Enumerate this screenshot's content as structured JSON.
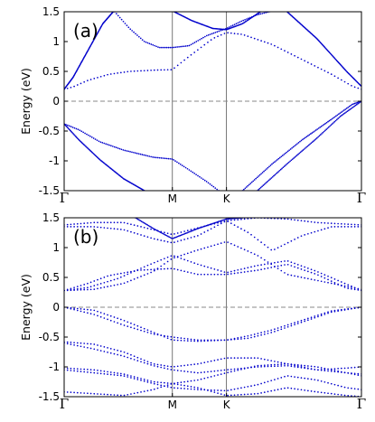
{
  "chart_data": [
    {
      "type": "line",
      "panel_label": "(a)",
      "ylabel": "Energy (eV)",
      "ylim": [
        -1.5,
        1.5
      ],
      "yticks": [
        -1.5,
        -1,
        -0.5,
        0,
        0.5,
        1,
        1.5
      ],
      "ytick_labels": [
        "-1.5",
        "-1",
        "-0.5",
        "0",
        "0.5",
        "1",
        "1.5"
      ],
      "xlim": [
        0,
        1
      ],
      "xticks": [
        {
          "label": "Γ",
          "x": 0.0,
          "sym": true
        },
        {
          "label": "M",
          "x": 0.364,
          "sym": false
        },
        {
          "label": "K",
          "x": 0.546,
          "sym": false
        },
        {
          "label": "Γ",
          "x": 1.0,
          "sym": true
        }
      ],
      "reference_line_y": 0,
      "color": "#0000cc",
      "series": [
        {
          "x": [
            0,
            0.03,
            0.08,
            0.15,
            0.22,
            0.3,
            0.364,
            0.42,
            0.5,
            0.546,
            0.6,
            0.7,
            0.8,
            0.9,
            0.97,
            1.0
          ],
          "y": [
            0.2,
            0.24,
            0.35,
            0.45,
            0.5,
            0.52,
            0.53,
            0.75,
            1.05,
            1.15,
            1.12,
            0.95,
            0.7,
            0.45,
            0.25,
            0.2
          ]
        },
        {
          "x": [
            0.17,
            0.22,
            0.27,
            0.32,
            0.364,
            0.42,
            0.48,
            0.546,
            0.6,
            0.65,
            0.69
          ],
          "y": [
            1.5,
            1.22,
            1.0,
            0.9,
            0.9,
            0.93,
            1.1,
            1.22,
            1.35,
            1.45,
            1.5
          ]
        },
        {
          "x": [
            0,
            0.03,
            0.08,
            0.13,
            0.165
          ],
          "y": [
            0.2,
            0.4,
            0.85,
            1.3,
            1.5
          ]
        },
        {
          "x": [
            0.37,
            0.43,
            0.5,
            0.546,
            0.6,
            0.66
          ],
          "y": [
            1.5,
            1.35,
            1.22,
            1.2,
            1.3,
            1.5
          ]
        },
        {
          "x": [
            0.75,
            0.85,
            0.95,
            1.0
          ],
          "y": [
            1.5,
            1.05,
            0.5,
            0.25
          ]
        },
        {
          "x": [
            0,
            0.05,
            0.12,
            0.2,
            0.3,
            0.364,
            0.42,
            0.48,
            0.52
          ],
          "y": [
            -0.38,
            -0.48,
            -0.68,
            -0.82,
            -0.94,
            -0.97,
            -1.15,
            -1.35,
            -1.5
          ]
        },
        {
          "x": [
            0,
            0.05,
            0.12,
            0.2,
            0.27
          ],
          "y": [
            -0.38,
            -0.65,
            -0.98,
            -1.3,
            -1.5
          ]
        },
        {
          "x": [
            0.6,
            0.7,
            0.8,
            0.9,
            0.97,
            1.0
          ],
          "y": [
            -1.5,
            -1.05,
            -0.65,
            -0.3,
            -0.05,
            0
          ]
        },
        {
          "x": [
            0.65,
            0.75,
            0.85,
            0.93,
            1.0
          ],
          "y": [
            -1.5,
            -1.05,
            -0.62,
            -0.25,
            0
          ]
        }
      ]
    },
    {
      "type": "line",
      "panel_label": "(b)",
      "ylabel": "Energy (eV)",
      "ylim": [
        -1.5,
        1.5
      ],
      "yticks": [
        -1.5,
        -1,
        -0.5,
        0,
        0.5,
        1,
        1.5
      ],
      "ytick_labels": [
        "-1.5",
        "-1",
        "-0.5",
        "0",
        "0.5",
        "1",
        "1.5"
      ],
      "xlim": [
        0,
        1
      ],
      "xticks": [
        {
          "label": "Γ",
          "x": 0.0,
          "sym": true
        },
        {
          "label": "M",
          "x": 0.364,
          "sym": false
        },
        {
          "label": "K",
          "x": 0.546,
          "sym": false
        },
        {
          "label": "Γ",
          "x": 1.0,
          "sym": true
        }
      ],
      "reference_line_y": 0,
      "color": "#0000cc",
      "series": [
        {
          "x": [
            0,
            0.08,
            0.15,
            0.25,
            0.364,
            0.45,
            0.546,
            0.65,
            0.75,
            0.85,
            0.95,
            1.0
          ],
          "y": [
            0.28,
            0.4,
            0.53,
            0.62,
            0.65,
            0.55,
            0.55,
            0.62,
            0.72,
            0.55,
            0.32,
            0.28
          ]
        },
        {
          "x": [
            0,
            0.08,
            0.18,
            0.28,
            0.364,
            0.45,
            0.546,
            0.65,
            0.75,
            0.85,
            1.0
          ],
          "y": [
            0.28,
            0.33,
            0.48,
            0.7,
            0.87,
            0.72,
            0.58,
            0.7,
            0.78,
            0.6,
            0.28
          ]
        },
        {
          "x": [
            0,
            0.1,
            0.2,
            0.3,
            0.364,
            0.45,
            0.546,
            0.65,
            0.75,
            0.85,
            1.0
          ],
          "y": [
            0.28,
            0.3,
            0.4,
            0.6,
            0.82,
            0.96,
            1.1,
            0.87,
            0.55,
            0.45,
            0.3
          ]
        },
        {
          "x": [
            0,
            0.1,
            0.2,
            0.3,
            0.364,
            0.45,
            0.546,
            0.62,
            0.7,
            0.8,
            0.9,
            1.0
          ],
          "y": [
            1.35,
            1.35,
            1.3,
            1.15,
            1.08,
            1.2,
            1.45,
            1.25,
            0.95,
            1.2,
            1.35,
            1.35
          ]
        },
        {
          "x": [
            0,
            0.1,
            0.2,
            0.3,
            0.364,
            0.45,
            0.546,
            0.65,
            0.75,
            0.85,
            1.0
          ],
          "y": [
            1.38,
            1.42,
            1.42,
            1.3,
            1.22,
            1.33,
            1.45,
            1.5,
            1.48,
            1.42,
            1.38
          ]
        },
        {
          "x": [
            0.24,
            0.3,
            0.364,
            0.45,
            0.546,
            0.6
          ],
          "y": [
            1.5,
            1.32,
            1.15,
            1.32,
            1.48,
            1.5
          ]
        },
        {
          "x": [
            0,
            0.1,
            0.2,
            0.3,
            0.364,
            0.45,
            0.546,
            0.62,
            0.7,
            0.8,
            0.9,
            1.0
          ],
          "y": [
            0,
            -0.12,
            -0.3,
            -0.45,
            -0.5,
            -0.55,
            -0.55,
            -0.52,
            -0.42,
            -0.25,
            -0.08,
            0
          ]
        },
        {
          "x": [
            0,
            0.1,
            0.2,
            0.3,
            0.364,
            0.45,
            0.546,
            0.62,
            0.7,
            0.8,
            0.9,
            1.0
          ],
          "y": [
            0,
            -0.05,
            -0.22,
            -0.42,
            -0.55,
            -0.57,
            -0.55,
            -0.48,
            -0.38,
            -0.22,
            -0.06,
            0
          ]
        },
        {
          "x": [
            0,
            0.1,
            0.2,
            0.3,
            0.364,
            0.45,
            0.546,
            0.65,
            0.75,
            0.85,
            0.95,
            1.0
          ],
          "y": [
            -0.58,
            -0.62,
            -0.75,
            -0.95,
            -1.0,
            -0.95,
            -0.85,
            -0.85,
            -0.95,
            -1.05,
            -1.02,
            -1.0
          ]
        },
        {
          "x": [
            0,
            0.1,
            0.2,
            0.3,
            0.364,
            0.45,
            0.546,
            0.65,
            0.75,
            0.85,
            0.95,
            1.0
          ],
          "y": [
            -0.6,
            -0.7,
            -0.82,
            -0.98,
            -1.05,
            -1.1,
            -1.05,
            -1.0,
            -0.98,
            -1.05,
            -1.1,
            -1.12
          ]
        },
        {
          "x": [
            0,
            0.1,
            0.2,
            0.3,
            0.364,
            0.45,
            0.546,
            0.65,
            0.75,
            0.85,
            0.95,
            1.0
          ],
          "y": [
            -1.02,
            -1.05,
            -1.12,
            -1.25,
            -1.28,
            -1.22,
            -1.1,
            -0.98,
            -0.95,
            -1.0,
            -1.1,
            -1.15
          ]
        },
        {
          "x": [
            0,
            0.1,
            0.2,
            0.3,
            0.364,
            0.45,
            0.546,
            0.65,
            0.75,
            0.85,
            0.95,
            1.0
          ],
          "y": [
            -1.05,
            -1.1,
            -1.15,
            -1.28,
            -1.35,
            -1.38,
            -1.4,
            -1.3,
            -1.15,
            -1.22,
            -1.35,
            -1.38
          ]
        },
        {
          "x": [
            0,
            0.1,
            0.2,
            0.3,
            0.364,
            0.45,
            0.546,
            0.65,
            0.75,
            0.85,
            0.95,
            1.0
          ],
          "y": [
            -1.42,
            -1.45,
            -1.48,
            -1.38,
            -1.28,
            -1.35,
            -1.48,
            -1.45,
            -1.35,
            -1.42,
            -1.48,
            -1.5
          ]
        }
      ]
    }
  ]
}
